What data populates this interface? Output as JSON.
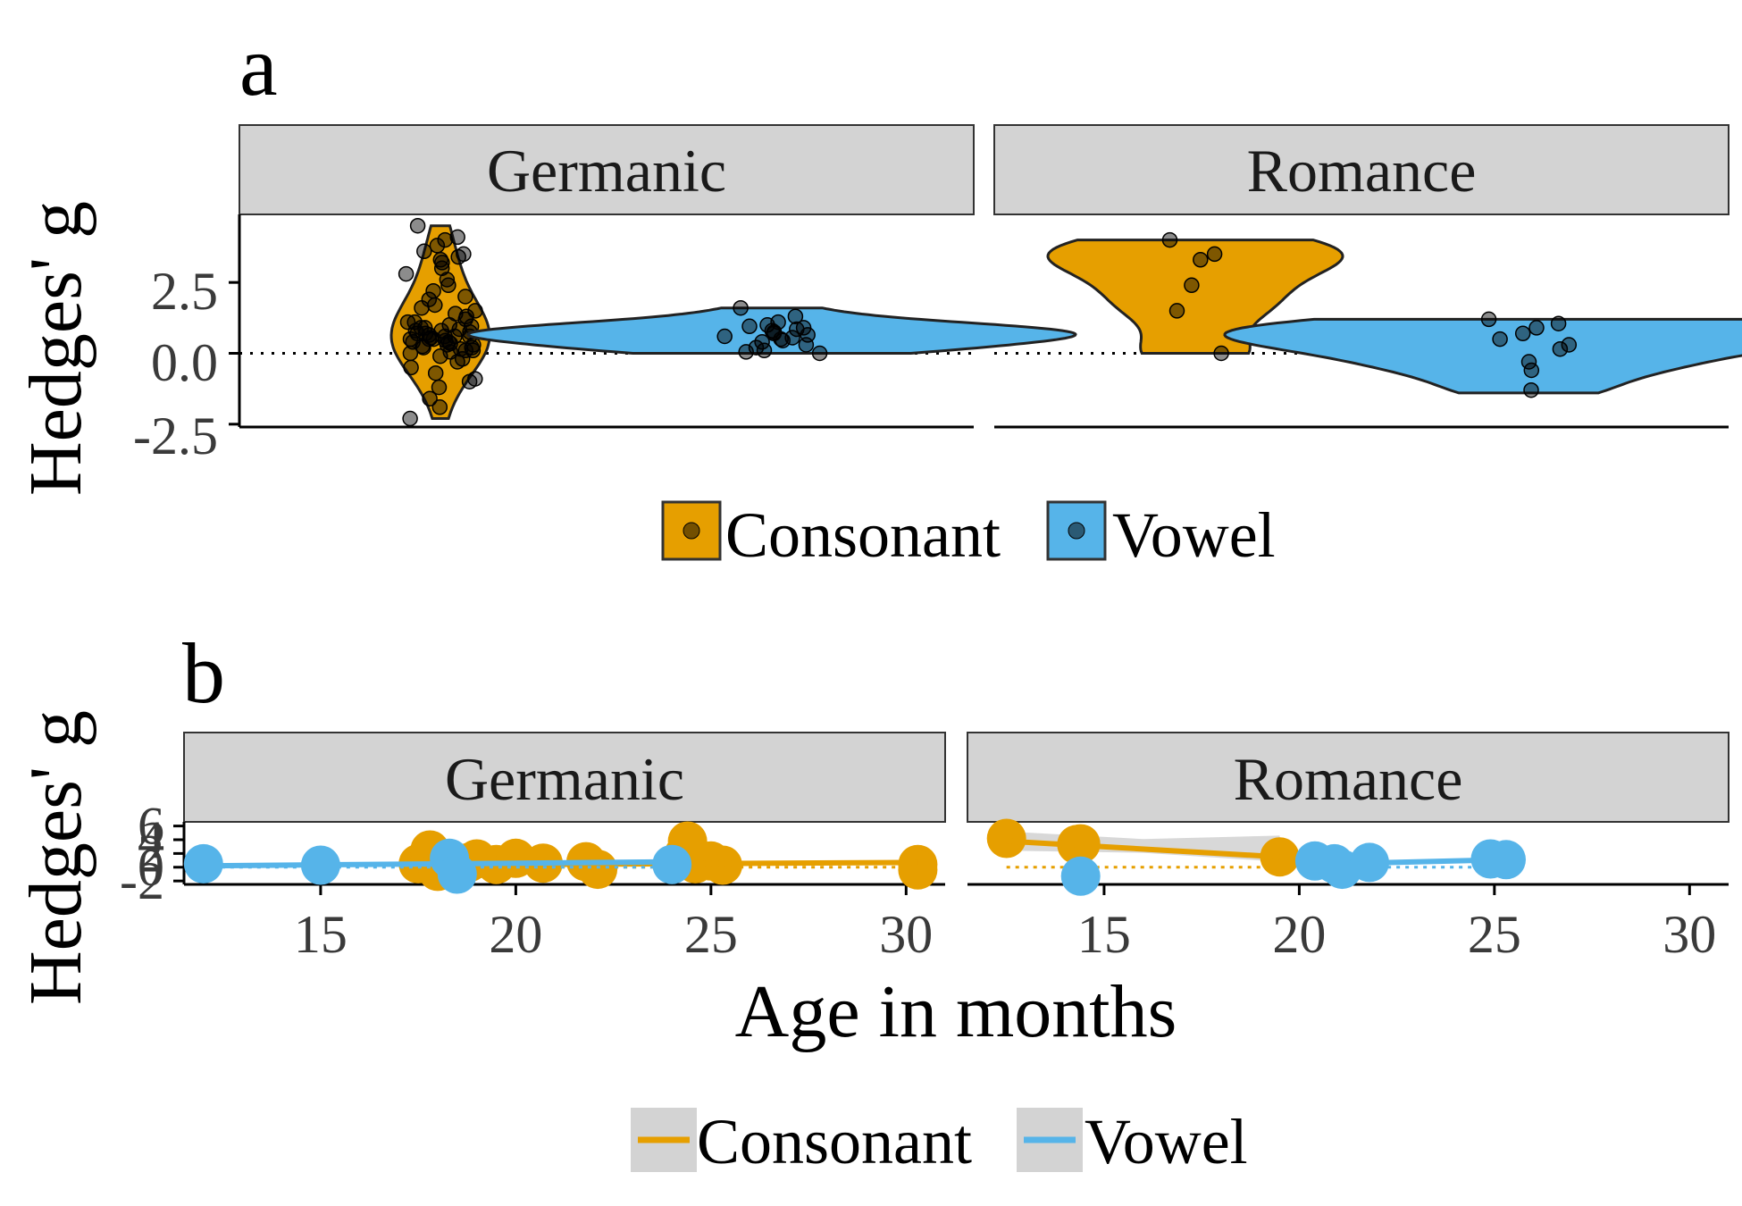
{
  "colors": {
    "consonant": "#E69F00",
    "vowel": "#56B4E9",
    "strip_fill": "#D3D3D3",
    "ribbon": "#BEBEBE"
  },
  "chart_data": [
    {
      "panel": "a",
      "type": "violin",
      "ylabel": "Hedges' g",
      "ylim": [
        -2.6,
        4.9
      ],
      "yticks": [
        "2.5",
        "0.0",
        "-2.5"
      ],
      "ytick_values": [
        2.5,
        0.0,
        -2.5
      ],
      "reference_line": 0,
      "facets": [
        "Germanic",
        "Romance"
      ],
      "categories": [
        "Consonant",
        "Vowel"
      ],
      "legend": [
        "Consonant",
        "Vowel"
      ],
      "series": [
        {
          "facet": "Germanic",
          "name": "Consonant",
          "range": [
            -2.3,
            4.5
          ],
          "points": [
            4.5,
            4.1,
            4.0,
            3.8,
            3.6,
            3.5,
            3.4,
            3.3,
            3.2,
            3.0,
            2.8,
            2.6,
            2.4,
            2.2,
            2.0,
            1.9,
            1.7,
            1.6,
            1.5,
            1.4,
            1.3,
            1.2,
            1.1,
            1.0,
            0.95,
            0.9,
            0.85,
            0.8,
            0.75,
            0.7,
            0.65,
            0.6,
            0.55,
            0.5,
            0.45,
            0.4,
            0.35,
            0.3,
            0.25,
            0.2,
            0.15,
            0.1,
            0.05,
            0.0,
            -0.1,
            -0.2,
            -0.3,
            -0.5,
            -0.7,
            -0.9,
            -1.0,
            -1.2,
            -1.6,
            -1.9,
            -2.3,
            0.6,
            0.7,
            0.5,
            0.4,
            0.3,
            0.8,
            0.9,
            0.2,
            0.1,
            1.1,
            0.6,
            0.5
          ]
        },
        {
          "facet": "Germanic",
          "name": "Vowel",
          "range": [
            0.0,
            1.6
          ],
          "points": [
            1.6,
            1.3,
            1.1,
            1.0,
            0.95,
            0.9,
            0.85,
            0.8,
            0.75,
            0.7,
            0.6,
            0.5,
            0.45,
            0.4,
            0.3,
            0.2,
            0.1,
            0.05,
            0.0,
            0.55,
            0.65
          ]
        },
        {
          "facet": "Romance",
          "name": "Consonant",
          "range": [
            0.0,
            4.0
          ],
          "points": [
            4.0,
            3.5,
            3.3,
            2.4,
            1.5,
            0.0
          ]
        },
        {
          "facet": "Romance",
          "name": "Vowel",
          "range": [
            -1.4,
            1.2
          ],
          "points": [
            1.2,
            1.05,
            0.9,
            0.7,
            0.5,
            0.3,
            0.15,
            -0.3,
            -0.6,
            -1.3
          ]
        }
      ]
    },
    {
      "panel": "b",
      "type": "scatter",
      "xlabel": "Age in months",
      "ylabel": "Hedges' g",
      "xlim": [
        11.5,
        31
      ],
      "xticks": [
        "15",
        "20",
        "25",
        "30"
      ],
      "xtick_values": [
        15,
        20,
        25,
        30
      ],
      "ylim": [
        -2.5,
        6.6
      ],
      "yticks": [
        "6",
        "4",
        "2",
        "0",
        "-2"
      ],
      "ytick_values": [
        6,
        4,
        2,
        0,
        -2
      ],
      "facets": [
        "Germanic",
        "Romance"
      ],
      "legend": [
        "Consonant",
        "Vowel"
      ],
      "series": [
        {
          "facet": "Germanic",
          "name": "Consonant",
          "x": [
            17.5,
            17.8,
            17.8,
            18.0,
            18.8,
            19.0,
            19.5,
            20.0,
            20.7,
            21.8,
            22.1,
            24.3,
            24.4,
            24.6,
            25.0,
            25.3,
            30.3,
            30.3
          ],
          "y": [
            0.5,
            0.8,
            2.5,
            -0.6,
            0.7,
            1.2,
            0.4,
            1.3,
            0.6,
            0.8,
            -0.3,
            1.8,
            3.8,
            0.5,
            0.9,
            0.3,
            0.4,
            -0.4
          ],
          "fit": {
            "x": [
              17.5,
              30.3
            ],
            "y": [
              0.3,
              0.7
            ]
          }
        },
        {
          "facet": "Germanic",
          "name": "Vowel",
          "x": [
            12.0,
            15.0,
            18.3,
            18.5,
            24.0
          ],
          "y": [
            0.5,
            0.3,
            1.3,
            -1.0,
            0.4
          ],
          "fit": {
            "x": [
              12.0,
              24.3
            ],
            "y": [
              0.2,
              0.8
            ]
          }
        },
        {
          "facet": "Romance",
          "name": "Consonant",
          "x": [
            12.5,
            14.3,
            14.4,
            19.5
          ],
          "y": [
            4.2,
            3.3,
            3.4,
            1.5
          ],
          "fit": {
            "x": [
              12.5,
              19.5
            ],
            "y": [
              3.8,
              1.5
            ]
          },
          "ribbon": {
            "x": [
              12.5,
              16.0,
              19.5
            ],
            "low": [
              2.4,
              2.1,
              0.8
            ],
            "high": [
              5.2,
              4.1,
              4.6
            ]
          }
        },
        {
          "facet": "Romance",
          "name": "Vowel",
          "x": [
            14.4,
            20.4,
            20.9,
            21.1,
            21.8,
            24.9,
            25.3
          ],
          "y": [
            -1.3,
            0.9,
            0.5,
            -0.3,
            0.7,
            1.2,
            1.1
          ],
          "fit": {
            "x": [
              20.2,
              25.3
            ],
            "y": [
              0.4,
              1.1
            ]
          }
        }
      ]
    }
  ]
}
